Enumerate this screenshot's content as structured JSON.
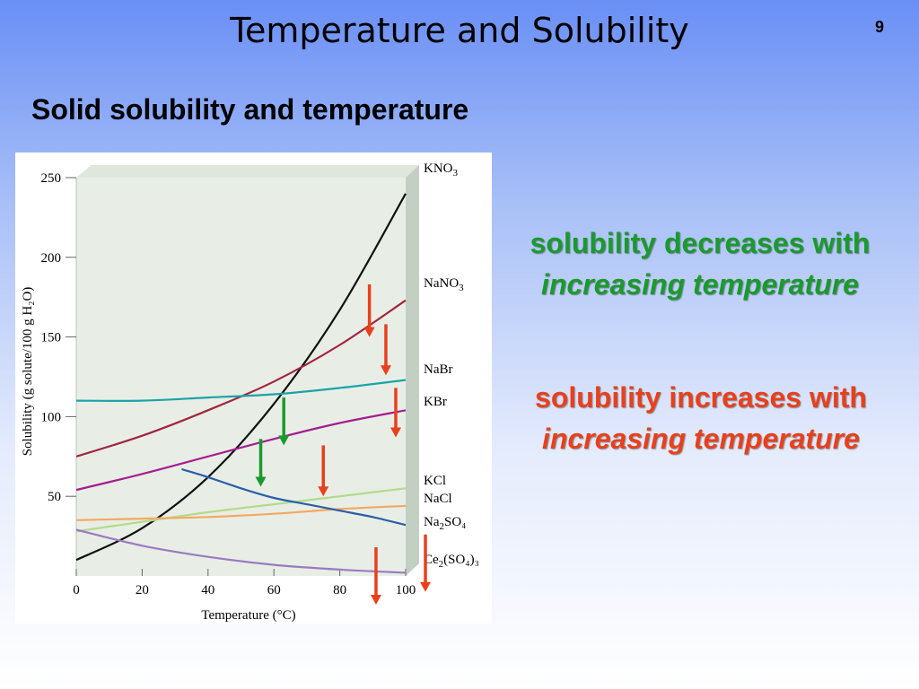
{
  "slide": {
    "title": "Temperature and Solubility",
    "number": "9",
    "subtitle": "Solid solubility and temperature"
  },
  "notes": {
    "decrease": {
      "text": "solubility decreases with ",
      "emph": "increasing temperature",
      "color": "#1a9a2c"
    },
    "increase": {
      "text": "solubility increases with ",
      "emph": "increasing temperature",
      "color": "#e8401c"
    }
  },
  "chart_data": {
    "type": "line",
    "xlabel": "Temperature (°C)",
    "ylabel": "Solubility (g solute/100 g H₂O)",
    "xlim": [
      0,
      100
    ],
    "ylim": [
      0,
      250
    ],
    "xticks": [
      0,
      20,
      40,
      60,
      80,
      100
    ],
    "yticks": [
      50,
      100,
      150,
      200,
      250
    ],
    "grid": false,
    "legend": "right (labels at line ends)",
    "series": [
      {
        "name": "KNO3",
        "label_main": "KNO",
        "label_sub": "3",
        "label_post": "",
        "color": "#111111",
        "x": [
          0,
          20,
          40,
          60,
          80,
          100
        ],
        "y": [
          10,
          30,
          62,
          108,
          167,
          240
        ]
      },
      {
        "name": "NaNO3",
        "label_main": "NaNO",
        "label_sub": "3",
        "label_post": "",
        "color": "#a3243e",
        "x": [
          0,
          20,
          40,
          60,
          80,
          100
        ],
        "y": [
          75,
          88,
          104,
          122,
          145,
          173
        ]
      },
      {
        "name": "NaBr",
        "label_main": "NaBr",
        "label_sub": "",
        "label_post": "",
        "color": "#1ba3a8",
        "x": [
          0,
          20,
          40,
          60,
          80,
          100
        ],
        "y": [
          110,
          110,
          112,
          114,
          118,
          123
        ]
      },
      {
        "name": "KBr",
        "label_main": "KBr",
        "label_sub": "",
        "label_post": "",
        "color": "#a51d91",
        "x": [
          0,
          20,
          40,
          60,
          80,
          100
        ],
        "y": [
          54,
          64,
          75,
          86,
          96,
          104
        ]
      },
      {
        "name": "KCl",
        "label_main": "KCl",
        "label_sub": "",
        "label_post": "",
        "color": "#b4da8a",
        "x": [
          0,
          20,
          40,
          60,
          80,
          100
        ],
        "y": [
          28,
          34,
          40,
          45,
          50,
          55
        ]
      },
      {
        "name": "NaCl",
        "label_main": "NaCl",
        "label_sub": "",
        "label_post": "",
        "color": "#f4a860",
        "x": [
          0,
          20,
          40,
          60,
          80,
          100
        ],
        "y": [
          35,
          36,
          37,
          39,
          42,
          44
        ]
      },
      {
        "name": "Na2SO4",
        "label_main": "Na",
        "label_sub": "2",
        "label_post": "SO₄",
        "color": "#2a5fa8",
        "x": [
          32,
          40,
          50,
          60,
          70,
          80,
          90,
          100
        ],
        "y": [
          67,
          62,
          55,
          49,
          45,
          41,
          37,
          32
        ]
      },
      {
        "name": "Ce2(SO4)3",
        "label_main": "Ce",
        "label_sub": "2",
        "label_post": "(SO₄)₃",
        "color": "#9b7ac0",
        "x": [
          0,
          20,
          40,
          60,
          80,
          100
        ],
        "y": [
          29,
          19,
          12,
          7,
          4,
          2
        ]
      }
    ],
    "arrows": [
      {
        "color": "#1a9a2c",
        "x": 63,
        "y_top": 112,
        "y_bottom": 82
      },
      {
        "color": "#1a9a2c",
        "x": 56,
        "y_top": 86,
        "y_bottom": 56
      },
      {
        "color": "#e8401c",
        "x": 89,
        "y_top": 183,
        "y_bottom": 150
      },
      {
        "color": "#e8401c",
        "x": 94,
        "y_top": 158,
        "y_bottom": 126
      },
      {
        "color": "#e8401c",
        "x": 97,
        "y_top": 118,
        "y_bottom": 87
      },
      {
        "color": "#e8401c",
        "x": 75,
        "y_top": 82,
        "y_bottom": 50
      },
      {
        "color": "#e8401c",
        "x": 106,
        "y_top": 26,
        "y_bottom": -10
      },
      {
        "color": "#e8401c",
        "x": 91,
        "y_top": 18,
        "y_bottom": -18
      }
    ]
  }
}
